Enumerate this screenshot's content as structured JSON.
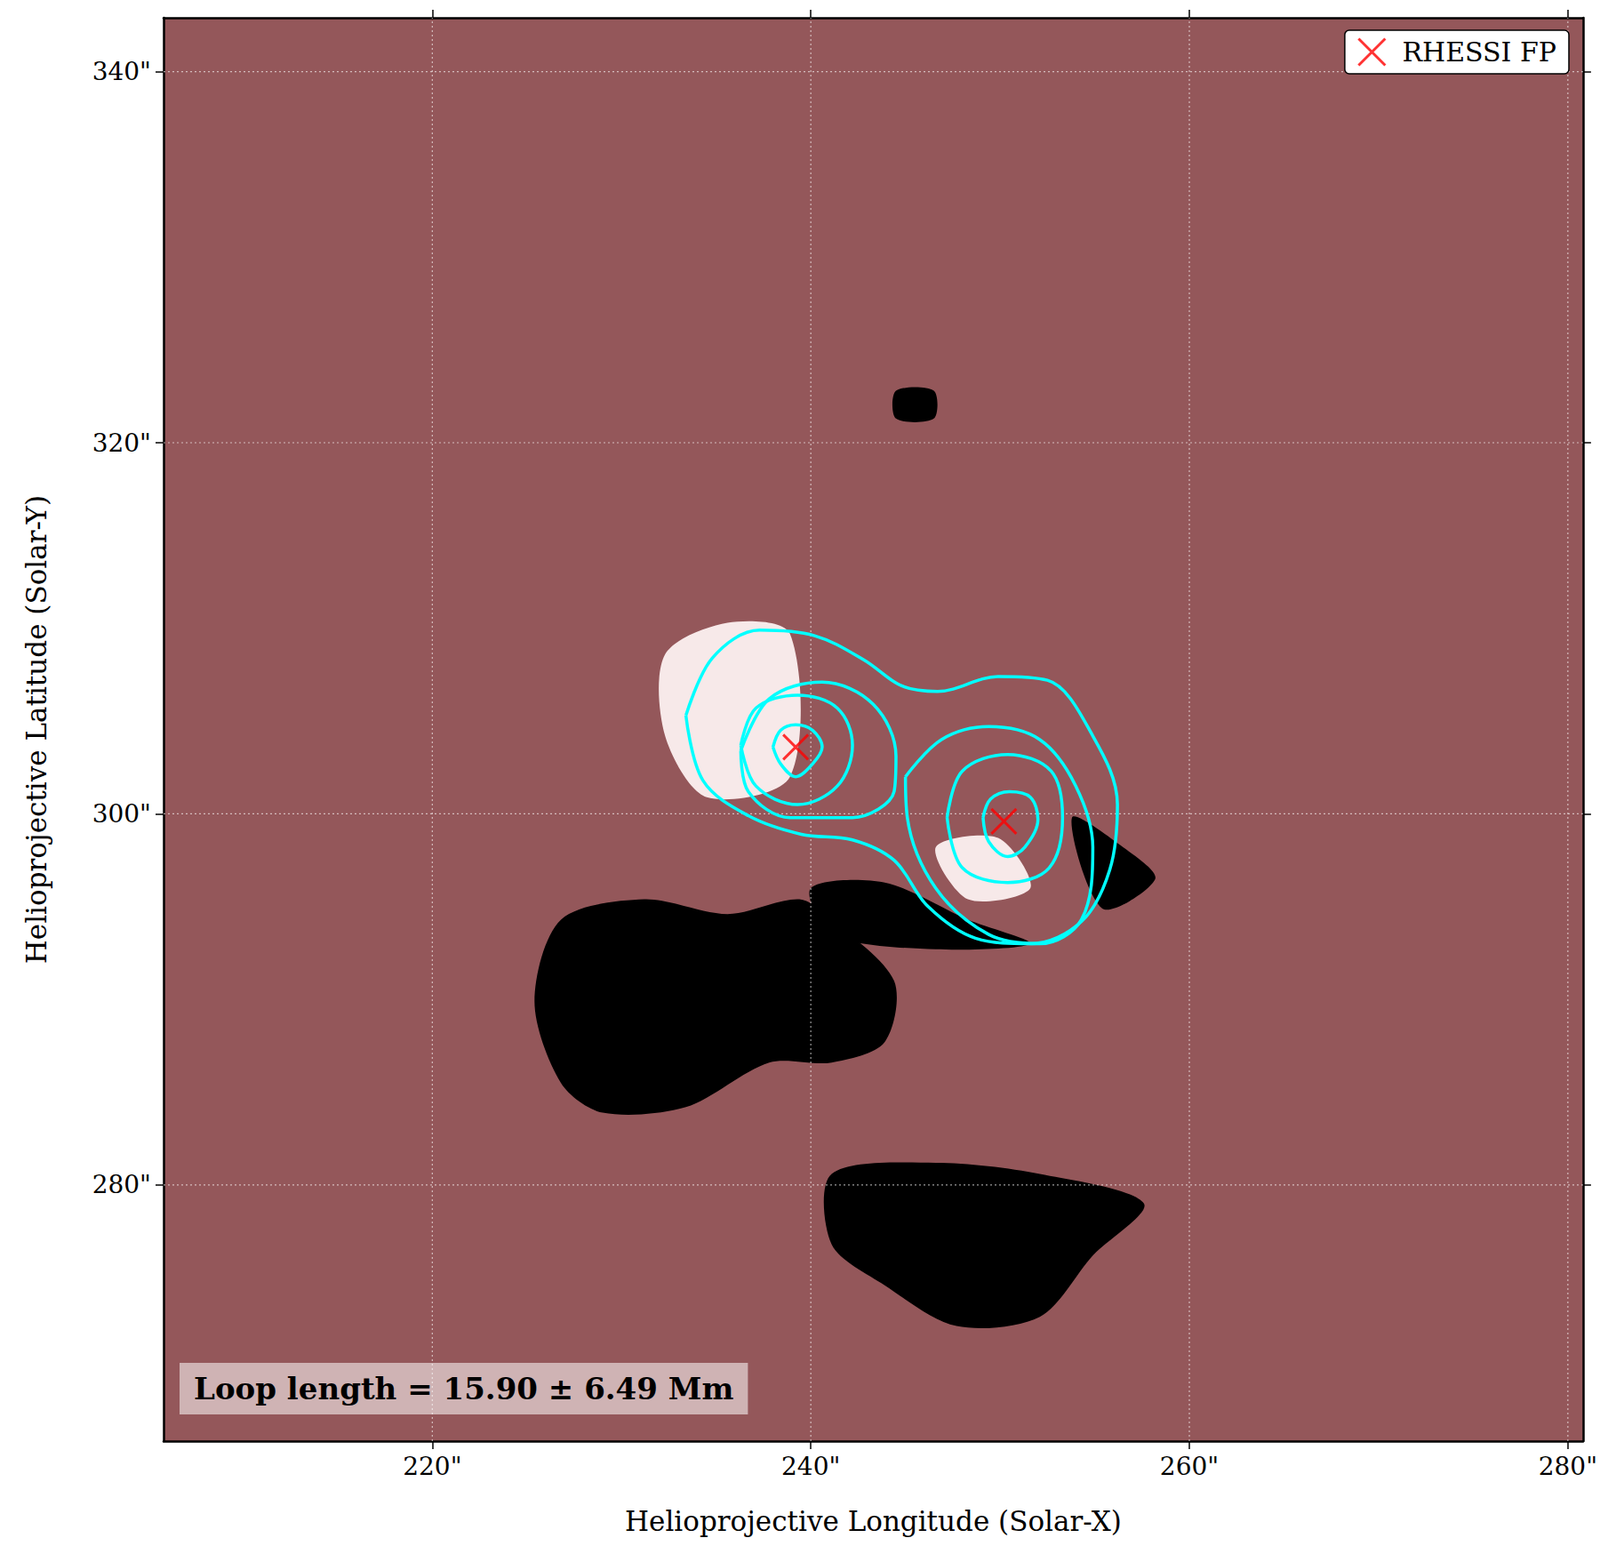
{
  "chart_data": {
    "type": "scatter",
    "xlabel": "Helioprojective Longitude (Solar-X)",
    "ylabel": "Helioprojective Latitude (Solar-Y)",
    "xlim": [
      205.8,
      280.8
    ],
    "ylim": [
      266.2,
      342.9
    ],
    "xticks": [
      {
        "value": 220,
        "label": "220\""
      },
      {
        "value": 240,
        "label": "240\""
      },
      {
        "value": 260,
        "label": "260\""
      },
      {
        "value": 280,
        "label": "280\""
      }
    ],
    "yticks": [
      {
        "value": 280,
        "label": "280\""
      },
      {
        "value": 300,
        "label": "300\""
      },
      {
        "value": 320,
        "label": "320\""
      },
      {
        "value": 340,
        "label": "340\""
      }
    ],
    "grid": true,
    "legend": "upper right",
    "annotations": [
      "Loop length = 15.90 ± 6.49 Mm"
    ],
    "series": [
      {
        "name": "RHESSI FP",
        "color": "#ff0000",
        "marker": "x",
        "x": [
          239.2,
          250.2
        ],
        "y": [
          303.6,
          299.6
        ]
      }
    ],
    "contours": {
      "color": "#00ffff",
      "lines": [
        [
          [
            233.4,
            305.3
          ],
          [
            234.8,
            308.4
          ],
          [
            237.3,
            309.9
          ],
          [
            240.2,
            309.6
          ],
          [
            242.8,
            308.3
          ],
          [
            244.8,
            306.9
          ],
          [
            246.7,
            306.6
          ],
          [
            249.9,
            307.4
          ],
          [
            252.5,
            307.2
          ],
          [
            254.9,
            304.2
          ],
          [
            256.2,
            300.5
          ],
          [
            255.8,
            297.0
          ],
          [
            254.3,
            294.2
          ],
          [
            251.6,
            293.0
          ],
          [
            248.7,
            293.3
          ],
          [
            246.2,
            295.0
          ],
          [
            244.4,
            297.5
          ],
          [
            242.2,
            298.6
          ],
          [
            239.5,
            298.9
          ],
          [
            236.7,
            299.9
          ],
          [
            234.3,
            301.8
          ],
          [
            233.4,
            305.3
          ]
        ],
        [
          [
            236.3,
            303.4
          ],
          [
            237.8,
            306.2
          ],
          [
            240.6,
            307.1
          ],
          [
            243.3,
            305.9
          ],
          [
            244.5,
            303.1
          ],
          [
            244.4,
            301.2
          ],
          [
            242.2,
            299.8
          ],
          [
            238.9,
            299.8
          ],
          [
            236.7,
            301.2
          ],
          [
            236.3,
            303.4
          ]
        ],
        [
          [
            245.0,
            302.0
          ],
          [
            246.9,
            304.0
          ],
          [
            249.4,
            304.7
          ],
          [
            252.1,
            304.0
          ],
          [
            254.0,
            301.5
          ],
          [
            254.9,
            298.2
          ],
          [
            254.3,
            294.3
          ],
          [
            252.1,
            293.0
          ],
          [
            249.4,
            293.5
          ],
          [
            246.6,
            296.0
          ],
          [
            245.1,
            299.8
          ],
          [
            245.0,
            302.0
          ]
        ],
        [
          [
            236.3,
            303.7
          ],
          [
            237.1,
            305.7
          ],
          [
            239.3,
            306.4
          ],
          [
            241.4,
            305.7
          ],
          [
            242.2,
            303.7
          ],
          [
            241.4,
            301.5
          ],
          [
            239.3,
            300.5
          ],
          [
            237.1,
            301.5
          ],
          [
            236.3,
            303.7
          ]
        ],
        [
          [
            247.2,
            299.8
          ],
          [
            248.0,
            302.3
          ],
          [
            250.4,
            303.2
          ],
          [
            252.7,
            302.3
          ],
          [
            253.3,
            299.8
          ],
          [
            252.6,
            297.1
          ],
          [
            250.4,
            296.3
          ],
          [
            248.0,
            297.1
          ],
          [
            247.2,
            299.8
          ]
        ],
        [
          [
            238.0,
            303.6
          ],
          [
            238.4,
            304.5
          ],
          [
            239.2,
            304.8
          ],
          [
            240.1,
            304.5
          ],
          [
            240.6,
            303.6
          ],
          [
            240.1,
            302.7
          ],
          [
            239.2,
            302.0
          ],
          [
            238.4,
            302.7
          ],
          [
            238.0,
            303.6
          ]
        ],
        [
          [
            249.1,
            299.8
          ],
          [
            249.5,
            300.8
          ],
          [
            250.5,
            301.2
          ],
          [
            251.6,
            300.9
          ],
          [
            252.0,
            299.7
          ],
          [
            251.3,
            298.2
          ],
          [
            250.4,
            297.7
          ],
          [
            249.4,
            298.5
          ],
          [
            249.1,
            299.8
          ]
        ]
      ]
    },
    "dark_regions": [
      [
        [
          226.8,
          294.3
        ],
        [
          231.2,
          295.4
        ],
        [
          235.6,
          294.6
        ],
        [
          239.4,
          295.4
        ],
        [
          241.1,
          294.3
        ],
        [
          244.4,
          291.0
        ],
        [
          243.9,
          287.7
        ],
        [
          241.1,
          286.6
        ],
        [
          237.8,
          286.6
        ],
        [
          233.4,
          284.2
        ],
        [
          229.0,
          283.9
        ],
        [
          226.8,
          285.5
        ],
        [
          225.4,
          289.9
        ]
      ],
      [
        [
          241.1,
          280.6
        ],
        [
          246.6,
          281.2
        ],
        [
          252.1,
          280.6
        ],
        [
          257.6,
          279.0
        ],
        [
          254.9,
          276.2
        ],
        [
          252.1,
          272.9
        ],
        [
          247.7,
          272.4
        ],
        [
          243.9,
          274.6
        ],
        [
          241.1,
          276.8
        ]
      ],
      [
        [
          240.0,
          296.0
        ],
        [
          243.9,
          296.3
        ],
        [
          248.3,
          294.3
        ],
        [
          251.6,
          293.0
        ],
        [
          246.6,
          292.7
        ],
        [
          241.1,
          293.5
        ]
      ],
      [
        [
          253.8,
          299.8
        ],
        [
          256.5,
          298.2
        ],
        [
          258.2,
          296.5
        ],
        [
          255.4,
          294.9
        ]
      ],
      [
        [
          244.5,
          322.8
        ],
        [
          246.5,
          322.8
        ],
        [
          246.5,
          321.3
        ],
        [
          244.5,
          321.3
        ]
      ]
    ],
    "bright_regions": [
      [
        [
          232.3,
          308.6
        ],
        [
          235.6,
          310.3
        ],
        [
          238.9,
          309.7
        ],
        [
          238.9,
          302.0
        ],
        [
          234.5,
          300.9
        ],
        [
          232.3,
          304.2
        ]
      ],
      [
        [
          246.6,
          298.2
        ],
        [
          249.9,
          298.7
        ],
        [
          251.6,
          296.0
        ],
        [
          248.3,
          295.4
        ]
      ]
    ]
  }
}
